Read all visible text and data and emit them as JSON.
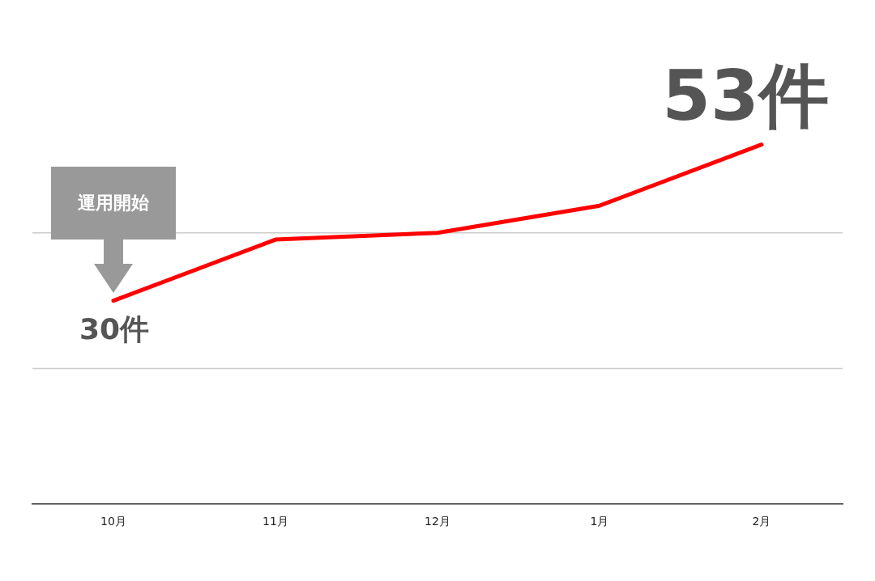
{
  "chart_data": {
    "type": "line",
    "categories": [
      "10月",
      "11月",
      "12月",
      "1月",
      "2月"
    ],
    "series": [
      {
        "color": "#ff0000",
        "values": [
          30,
          39,
          40,
          44,
          53
        ],
        "value_labels": [
          "30件",
          null,
          null,
          null,
          "53件"
        ]
      }
    ],
    "ref_lines": [
      {
        "axis": "y",
        "value": 20,
        "color": "#cccccc"
      },
      {
        "axis": "y",
        "value": 40,
        "color": "#cccccc"
      }
    ],
    "tick_labels": "x",
    "marker": "none",
    "line_style": "solid",
    "annotations": [
      "運用開始"
    ]
  }
}
